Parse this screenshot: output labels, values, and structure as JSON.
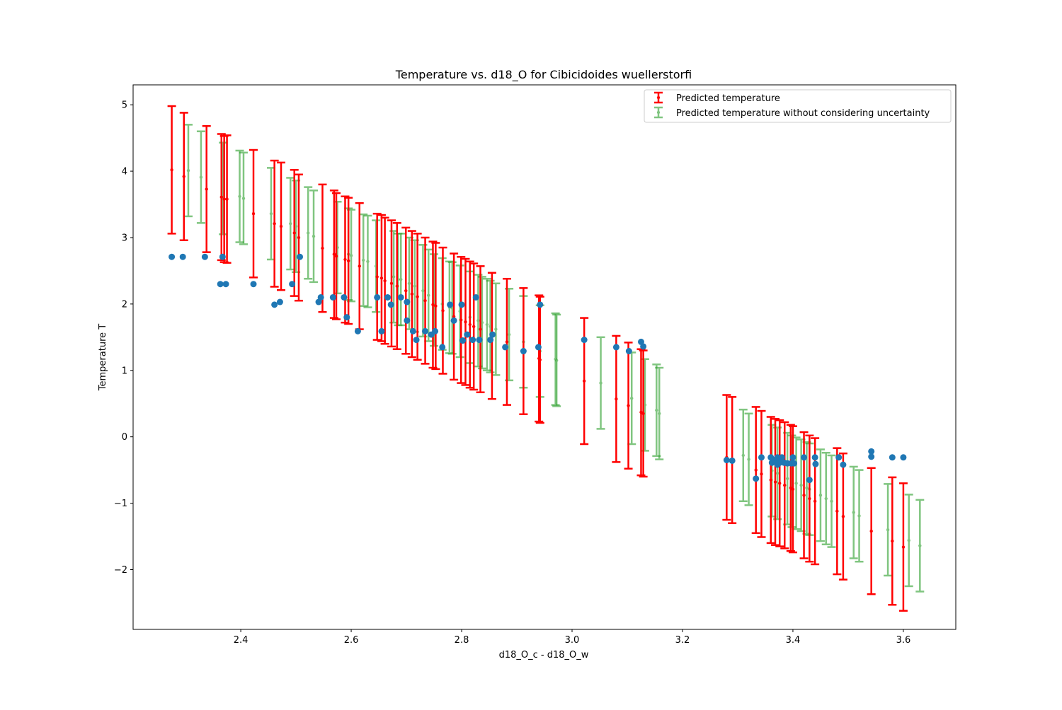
{
  "chart_data": {
    "type": "scatter",
    "title": "Temperature vs. d18_O for Cibicidoides wuellerstorfi",
    "xlabel": "d18_O_c - d18_O_w",
    "ylabel": "Temperature T",
    "xlim": [
      2.205,
      3.695
    ],
    "ylim": [
      -2.9,
      5.3
    ],
    "xticks": [
      "2.4",
      "2.6",
      "2.8",
      "3.0",
      "3.2",
      "3.4",
      "3.6"
    ],
    "yticks": [
      "−2",
      "−1",
      "0",
      "1",
      "2",
      "3",
      "4",
      "5"
    ],
    "xtick_values": [
      2.4,
      2.6,
      2.8,
      3.0,
      3.2,
      3.4,
      3.6
    ],
    "ytick_values": [
      -2,
      -1,
      0,
      1,
      2,
      3,
      4,
      5
    ],
    "grid": false,
    "legend_position": "top-right",
    "colors": {
      "observed": "#1f77b4",
      "predicted": "#ff0000",
      "predicted_no_uncertainty": "#2ca02c"
    },
    "series": [
      {
        "name": "",
        "kind": "scatter",
        "points": [
          [
            2.275,
            2.71
          ],
          [
            2.295,
            2.71
          ],
          [
            2.335,
            2.71
          ],
          [
            2.363,
            2.3
          ],
          [
            2.373,
            2.3
          ],
          [
            2.367,
            2.71
          ],
          [
            2.423,
            2.3
          ],
          [
            2.461,
            1.99
          ],
          [
            2.471,
            2.03
          ],
          [
            2.493,
            2.3
          ],
          [
            2.507,
            2.71
          ],
          [
            2.541,
            2.03
          ],
          [
            2.545,
            2.1
          ],
          [
            2.567,
            2.1
          ],
          [
            2.587,
            2.1
          ],
          [
            2.592,
            1.8
          ],
          [
            2.612,
            1.59
          ],
          [
            2.647,
            2.1
          ],
          [
            2.655,
            1.59
          ],
          [
            2.666,
            2.1
          ],
          [
            2.672,
            1.99
          ],
          [
            2.69,
            2.1
          ],
          [
            2.701,
            1.75
          ],
          [
            2.701,
            2.03
          ],
          [
            2.712,
            1.59
          ],
          [
            2.718,
            1.46
          ],
          [
            2.734,
            1.59
          ],
          [
            2.745,
            1.54
          ],
          [
            2.752,
            1.59
          ],
          [
            2.765,
            1.35
          ],
          [
            2.779,
            1.99
          ],
          [
            2.786,
            1.75
          ],
          [
            2.8,
            1.99
          ],
          [
            2.802,
            1.45
          ],
          [
            2.81,
            1.54
          ],
          [
            2.82,
            1.46
          ],
          [
            2.826,
            2.1
          ],
          [
            2.832,
            1.46
          ],
          [
            2.852,
            1.46
          ],
          [
            2.856,
            1.54
          ],
          [
            2.879,
            1.35
          ],
          [
            2.912,
            1.29
          ],
          [
            2.939,
            1.35
          ],
          [
            2.942,
            1.99
          ],
          [
            3.022,
            1.46
          ],
          [
            3.08,
            1.35
          ],
          [
            3.103,
            1.29
          ],
          [
            3.125,
            1.43
          ],
          [
            3.129,
            1.36
          ],
          [
            3.28,
            -0.35
          ],
          [
            3.29,
            -0.36
          ],
          [
            3.333,
            -0.63
          ],
          [
            3.343,
            -0.31
          ],
          [
            3.36,
            -0.31
          ],
          [
            3.362,
            -0.39
          ],
          [
            3.367,
            -0.35
          ],
          [
            3.372,
            -0.31
          ],
          [
            3.372,
            -0.42
          ],
          [
            3.376,
            -0.39
          ],
          [
            3.38,
            -0.31
          ],
          [
            3.384,
            -0.39
          ],
          [
            3.39,
            -0.4
          ],
          [
            3.397,
            -0.4
          ],
          [
            3.4,
            -0.31
          ],
          [
            3.402,
            -0.4
          ],
          [
            3.42,
            -0.31
          ],
          [
            3.43,
            -0.65
          ],
          [
            3.44,
            -0.31
          ],
          [
            3.441,
            -0.41
          ],
          [
            3.483,
            -0.31
          ],
          [
            3.491,
            -0.42
          ],
          [
            3.542,
            -0.22
          ],
          [
            3.542,
            -0.3
          ],
          [
            3.58,
            -0.31
          ],
          [
            3.6,
            -0.31
          ]
        ]
      },
      {
        "name": "Predicted temperature",
        "kind": "errorbar",
        "points": [
          [
            2.275,
            4.02,
            0.96
          ],
          [
            2.297,
            3.92,
            0.96
          ],
          [
            2.338,
            3.73,
            0.95
          ],
          [
            2.365,
            3.61,
            0.95
          ],
          [
            2.37,
            3.58,
            0.95
          ],
          [
            2.375,
            3.58,
            0.96
          ],
          [
            2.423,
            3.36,
            0.96
          ],
          [
            2.461,
            3.21,
            0.95
          ],
          [
            2.473,
            3.17,
            0.96
          ],
          [
            2.497,
            3.07,
            0.95
          ],
          [
            2.505,
            3.0,
            0.95
          ],
          [
            2.548,
            2.84,
            0.96
          ],
          [
            2.569,
            2.75,
            0.96
          ],
          [
            2.573,
            2.72,
            0.95
          ],
          [
            2.589,
            2.67,
            0.95
          ],
          [
            2.595,
            2.65,
            0.95
          ],
          [
            2.615,
            2.57,
            0.95
          ],
          [
            2.647,
            2.41,
            0.95
          ],
          [
            2.655,
            2.39,
            0.95
          ],
          [
            2.661,
            2.35,
            0.95
          ],
          [
            2.673,
            2.31,
            0.95
          ],
          [
            2.683,
            2.27,
            0.95
          ],
          [
            2.699,
            2.2,
            0.95
          ],
          [
            2.71,
            2.15,
            0.95
          ],
          [
            2.72,
            2.11,
            0.95
          ],
          [
            2.734,
            2.05,
            0.95
          ],
          [
            2.748,
            1.99,
            0.95
          ],
          [
            2.753,
            1.97,
            0.95
          ],
          [
            2.766,
            1.9,
            0.95
          ],
          [
            2.786,
            1.81,
            0.95
          ],
          [
            2.799,
            1.76,
            0.95
          ],
          [
            2.807,
            1.73,
            0.95
          ],
          [
            2.815,
            1.69,
            0.95
          ],
          [
            2.822,
            1.66,
            0.95
          ],
          [
            2.834,
            1.62,
            0.95
          ],
          [
            2.855,
            1.52,
            0.95
          ],
          [
            2.882,
            1.43,
            0.95
          ],
          [
            2.912,
            1.29,
            0.95
          ],
          [
            2.94,
            1.18,
            0.95
          ],
          [
            2.942,
            1.16,
            0.95
          ],
          [
            3.022,
            0.84,
            0.95
          ],
          [
            3.08,
            0.57,
            0.95
          ],
          [
            3.102,
            0.47,
            0.95
          ],
          [
            3.125,
            0.37,
            0.95
          ],
          [
            3.129,
            0.35,
            0.95
          ],
          [
            3.28,
            -0.31,
            0.94
          ],
          [
            3.29,
            -0.35,
            0.95
          ],
          [
            3.333,
            -0.5,
            0.95
          ],
          [
            3.343,
            -0.56,
            0.95
          ],
          [
            3.36,
            -0.65,
            0.95
          ],
          [
            3.368,
            -0.68,
            0.95
          ],
          [
            3.376,
            -0.7,
            0.95
          ],
          [
            3.385,
            -0.73,
            0.95
          ],
          [
            3.396,
            -0.77,
            0.95
          ],
          [
            3.4,
            -0.79,
            0.95
          ],
          [
            3.42,
            -0.88,
            0.95
          ],
          [
            3.43,
            -0.93,
            0.95
          ],
          [
            3.44,
            -0.97,
            0.95
          ],
          [
            3.48,
            -1.12,
            0.95
          ],
          [
            3.491,
            -1.2,
            0.95
          ],
          [
            3.542,
            -1.42,
            0.95
          ],
          [
            3.58,
            -1.57,
            0.96
          ],
          [
            3.6,
            -1.66,
            0.96
          ]
        ]
      },
      {
        "name": "Predicted temperature without considering uncertainty",
        "kind": "errorbar",
        "points": [
          [
            2.305,
            4.01,
            0.69
          ],
          [
            2.328,
            3.91,
            0.69
          ],
          [
            2.368,
            3.74,
            0.69
          ],
          [
            2.398,
            3.62,
            0.69
          ],
          [
            2.405,
            3.59,
            0.69
          ],
          [
            2.455,
            3.36,
            0.69
          ],
          [
            2.49,
            3.21,
            0.69
          ],
          [
            2.5,
            3.17,
            0.69
          ],
          [
            2.522,
            3.07,
            0.69
          ],
          [
            2.532,
            3.02,
            0.69
          ],
          [
            2.575,
            2.85,
            0.69
          ],
          [
            2.595,
            2.75,
            0.69
          ],
          [
            2.6,
            2.73,
            0.69
          ],
          [
            2.622,
            2.66,
            0.69
          ],
          [
            2.63,
            2.64,
            0.69
          ],
          [
            2.645,
            2.57,
            0.69
          ],
          [
            2.677,
            2.41,
            0.69
          ],
          [
            2.685,
            2.37,
            0.69
          ],
          [
            2.69,
            2.37,
            0.69
          ],
          [
            2.705,
            2.31,
            0.69
          ],
          [
            2.715,
            2.27,
            0.69
          ],
          [
            2.73,
            2.2,
            0.69
          ],
          [
            2.74,
            2.13,
            0.69
          ],
          [
            2.75,
            2.06,
            0.69
          ],
          [
            2.765,
            2.0,
            0.69
          ],
          [
            2.778,
            1.95,
            0.69
          ],
          [
            2.783,
            1.94,
            0.69
          ],
          [
            2.797,
            1.89,
            0.69
          ],
          [
            2.815,
            1.8,
            0.69
          ],
          [
            2.83,
            1.75,
            0.69
          ],
          [
            2.837,
            1.72,
            0.69
          ],
          [
            2.846,
            1.69,
            0.69
          ],
          [
            2.852,
            1.66,
            0.69
          ],
          [
            2.862,
            1.62,
            0.69
          ],
          [
            2.886,
            1.54,
            0.69
          ],
          [
            2.912,
            1.43,
            0.69
          ],
          [
            2.942,
            1.29,
            0.69
          ],
          [
            2.97,
            1.17,
            0.69
          ],
          [
            2.972,
            1.15,
            0.69
          ],
          [
            3.052,
            0.81,
            0.69
          ],
          [
            3.108,
            0.58,
            0.69
          ],
          [
            3.132,
            0.48,
            0.69
          ],
          [
            3.153,
            0.4,
            0.69
          ],
          [
            3.158,
            0.35,
            0.69
          ],
          [
            3.31,
            -0.28,
            0.69
          ],
          [
            3.32,
            -0.34,
            0.69
          ],
          [
            3.362,
            -0.51,
            0.69
          ],
          [
            3.372,
            -0.55,
            0.69
          ],
          [
            3.39,
            -0.63,
            0.69
          ],
          [
            3.398,
            -0.67,
            0.69
          ],
          [
            3.406,
            -0.7,
            0.69
          ],
          [
            3.415,
            -0.73,
            0.69
          ],
          [
            3.425,
            -0.77,
            0.69
          ],
          [
            3.43,
            -0.79,
            0.69
          ],
          [
            3.45,
            -0.88,
            0.69
          ],
          [
            3.46,
            -0.93,
            0.69
          ],
          [
            3.47,
            -0.97,
            0.69
          ],
          [
            3.51,
            -1.14,
            0.69
          ],
          [
            3.52,
            -1.19,
            0.69
          ],
          [
            3.572,
            -1.4,
            0.69
          ],
          [
            3.61,
            -1.56,
            0.69
          ],
          [
            3.63,
            -1.64,
            0.69
          ]
        ]
      }
    ]
  }
}
